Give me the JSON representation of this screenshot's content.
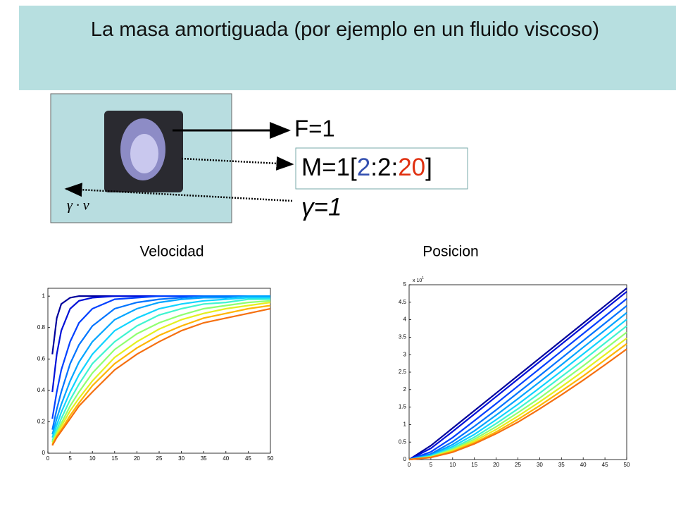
{
  "slide": {
    "title": "La masa amortiguada (por ejemplo en un fluido viscoso)",
    "force": "F=1",
    "mass_parts": [
      "M=1[",
      "2",
      ":2:",
      "20",
      "]"
    ],
    "damping": "γ=1",
    "drag_label": "γ · v"
  },
  "chart_data": [
    {
      "type": "line",
      "title": "Velocidad",
      "x": [
        1,
        2,
        3,
        5,
        7,
        10,
        15,
        20,
        25,
        30,
        35,
        40,
        45,
        50
      ],
      "xlim": [
        0,
        50
      ],
      "xticks": [
        0,
        5,
        10,
        15,
        20,
        25,
        30,
        35,
        40,
        45,
        50
      ],
      "ylim": [
        0,
        1.05
      ],
      "yticks": [
        0,
        0.2,
        0.4,
        0.6,
        0.8,
        1
      ],
      "series": [
        {
          "color": "#00009c",
          "values": [
            0.63,
            0.86,
            0.95,
            0.99,
            1,
            1,
            1,
            1,
            1,
            1,
            1,
            1,
            1,
            1
          ]
        },
        {
          "color": "#0010d8",
          "values": [
            0.39,
            0.63,
            0.78,
            0.92,
            0.97,
            0.99,
            1,
            1,
            1,
            1,
            1,
            1,
            1,
            1
          ]
        },
        {
          "color": "#0040ff",
          "values": [
            0.22,
            0.39,
            0.53,
            0.71,
            0.83,
            0.92,
            0.98,
            0.99,
            1,
            1,
            1,
            1,
            1,
            1
          ]
        },
        {
          "color": "#0074ff",
          "values": [
            0.15,
            0.28,
            0.39,
            0.57,
            0.69,
            0.81,
            0.92,
            0.96,
            0.98,
            0.99,
            1,
            1,
            1,
            1
          ]
        },
        {
          "color": "#00a4ff",
          "values": [
            0.12,
            0.22,
            0.31,
            0.46,
            0.58,
            0.71,
            0.85,
            0.92,
            0.96,
            0.98,
            0.99,
            0.99,
            1,
            1
          ]
        },
        {
          "color": "#10d4ff",
          "values": [
            0.1,
            0.18,
            0.26,
            0.39,
            0.5,
            0.63,
            0.78,
            0.86,
            0.92,
            0.95,
            0.97,
            0.98,
            0.99,
            0.99
          ]
        },
        {
          "color": "#40f4d0",
          "values": [
            0.08,
            0.15,
            0.22,
            0.34,
            0.44,
            0.57,
            0.71,
            0.81,
            0.88,
            0.92,
            0.95,
            0.96,
            0.98,
            0.98
          ]
        },
        {
          "color": "#90ff70",
          "values": [
            0.07,
            0.13,
            0.19,
            0.3,
            0.39,
            0.51,
            0.66,
            0.76,
            0.83,
            0.88,
            0.92,
            0.94,
            0.96,
            0.97
          ]
        },
        {
          "color": "#e4f020",
          "values": [
            0.06,
            0.12,
            0.17,
            0.27,
            0.35,
            0.46,
            0.61,
            0.71,
            0.79,
            0.85,
            0.89,
            0.92,
            0.94,
            0.96
          ]
        },
        {
          "color": "#ffb400",
          "values": [
            0.05,
            0.11,
            0.15,
            0.24,
            0.32,
            0.43,
            0.57,
            0.67,
            0.75,
            0.81,
            0.86,
            0.89,
            0.92,
            0.94
          ]
        },
        {
          "color": "#f57010",
          "values": [
            0.05,
            0.1,
            0.14,
            0.22,
            0.3,
            0.39,
            0.53,
            0.63,
            0.71,
            0.78,
            0.83,
            0.86,
            0.89,
            0.92
          ]
        }
      ]
    },
    {
      "type": "line",
      "title": "Posicion",
      "y_offset_label": "x 10",
      "y_offset_exponent": "1",
      "x": [
        0,
        5,
        10,
        15,
        20,
        25,
        30,
        35,
        40,
        45,
        50
      ],
      "xlim": [
        0,
        50
      ],
      "xticks": [
        0,
        5,
        10,
        15,
        20,
        25,
        30,
        35,
        40,
        45,
        50
      ],
      "ylim": [
        0,
        5
      ],
      "yticks": [
        0,
        0.5,
        1,
        1.5,
        2,
        2.5,
        3,
        3.5,
        4,
        4.5,
        5
      ],
      "series": [
        {
          "color": "#00009c",
          "values": [
            0,
            0.4,
            0.9,
            1.4,
            1.9,
            2.4,
            2.9,
            3.4,
            3.9,
            4.4,
            4.9
          ]
        },
        {
          "color": "#0010d8",
          "values": [
            0,
            0.32,
            0.8,
            1.3,
            1.8,
            2.3,
            2.8,
            3.3,
            3.8,
            4.3,
            4.8
          ]
        },
        {
          "color": "#0040ff",
          "values": [
            0,
            0.22,
            0.63,
            1.11,
            1.6,
            2.1,
            2.6,
            3.1,
            3.6,
            4.1,
            4.6
          ]
        },
        {
          "color": "#0074ff",
          "values": [
            0,
            0.16,
            0.51,
            0.95,
            1.42,
            1.91,
            2.4,
            2.9,
            3.4,
            3.9,
            4.4
          ]
        },
        {
          "color": "#00a4ff",
          "values": [
            0,
            0.13,
            0.43,
            0.82,
            1.27,
            1.74,
            2.22,
            2.71,
            3.21,
            3.7,
            4.2
          ]
        },
        {
          "color": "#10d4ff",
          "values": [
            0,
            0.11,
            0.37,
            0.72,
            1.14,
            1.58,
            2.05,
            2.53,
            3.02,
            3.51,
            4.01
          ]
        },
        {
          "color": "#40f4d0",
          "values": [
            0,
            0.09,
            0.32,
            0.64,
            1.03,
            1.45,
            1.9,
            2.37,
            2.84,
            3.33,
            3.82
          ]
        },
        {
          "color": "#90ff70",
          "values": [
            0,
            0.08,
            0.29,
            0.58,
            0.94,
            1.34,
            1.76,
            2.22,
            2.68,
            3.16,
            3.64
          ]
        },
        {
          "color": "#e4f020",
          "values": [
            0,
            0.07,
            0.26,
            0.53,
            0.86,
            1.24,
            1.65,
            2.08,
            2.53,
            3,
            3.47
          ]
        },
        {
          "color": "#ffb400",
          "values": [
            0,
            0.06,
            0.23,
            0.48,
            0.79,
            1.15,
            1.54,
            1.96,
            2.39,
            2.85,
            3.31
          ]
        },
        {
          "color": "#f57010",
          "values": [
            0,
            0.06,
            0.21,
            0.45,
            0.74,
            1.07,
            1.45,
            1.85,
            2.27,
            2.71,
            3.16
          ]
        }
      ]
    }
  ]
}
